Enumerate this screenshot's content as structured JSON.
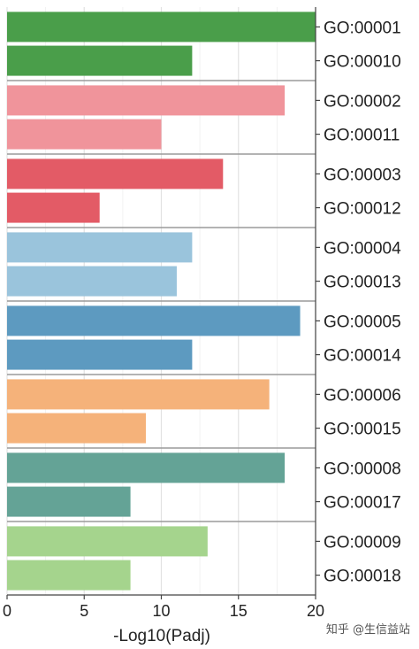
{
  "chart_data": {
    "type": "bar",
    "orientation": "horizontal",
    "xlabel": "-Log10(Padj)",
    "xlim": [
      0,
      20
    ],
    "xticks": [
      0,
      5,
      10,
      15,
      20
    ],
    "grid": true,
    "groups": [
      {
        "color": "#4a9e4a",
        "items": [
          {
            "label": "GO:00001",
            "value": 20
          },
          {
            "label": "GO:00010",
            "value": 12
          }
        ]
      },
      {
        "color": "#f0949b",
        "items": [
          {
            "label": "GO:00002",
            "value": 18
          },
          {
            "label": "GO:00011",
            "value": 10
          }
        ]
      },
      {
        "color": "#e35b66",
        "items": [
          {
            "label": "GO:00003",
            "value": 14
          },
          {
            "label": "GO:00012",
            "value": 6
          }
        ]
      },
      {
        "color": "#9ac4dc",
        "items": [
          {
            "label": "GO:00004",
            "value": 12
          },
          {
            "label": "GO:00013",
            "value": 11
          }
        ]
      },
      {
        "color": "#5d9ac0",
        "items": [
          {
            "label": "GO:00005",
            "value": 19
          },
          {
            "label": "GO:00014",
            "value": 12
          }
        ]
      },
      {
        "color": "#f5b27a",
        "items": [
          {
            "label": "GO:00006",
            "value": 17
          },
          {
            "label": "GO:00015",
            "value": 9
          }
        ]
      },
      {
        "color": "#64a396",
        "items": [
          {
            "label": "GO:00008",
            "value": 18
          },
          {
            "label": "GO:00017",
            "value": 8
          }
        ]
      },
      {
        "color": "#a5d48d",
        "items": [
          {
            "label": "GO:00009",
            "value": 13
          },
          {
            "label": "GO:00018",
            "value": 8
          }
        ]
      }
    ]
  },
  "watermark": "知乎 @生信益站"
}
